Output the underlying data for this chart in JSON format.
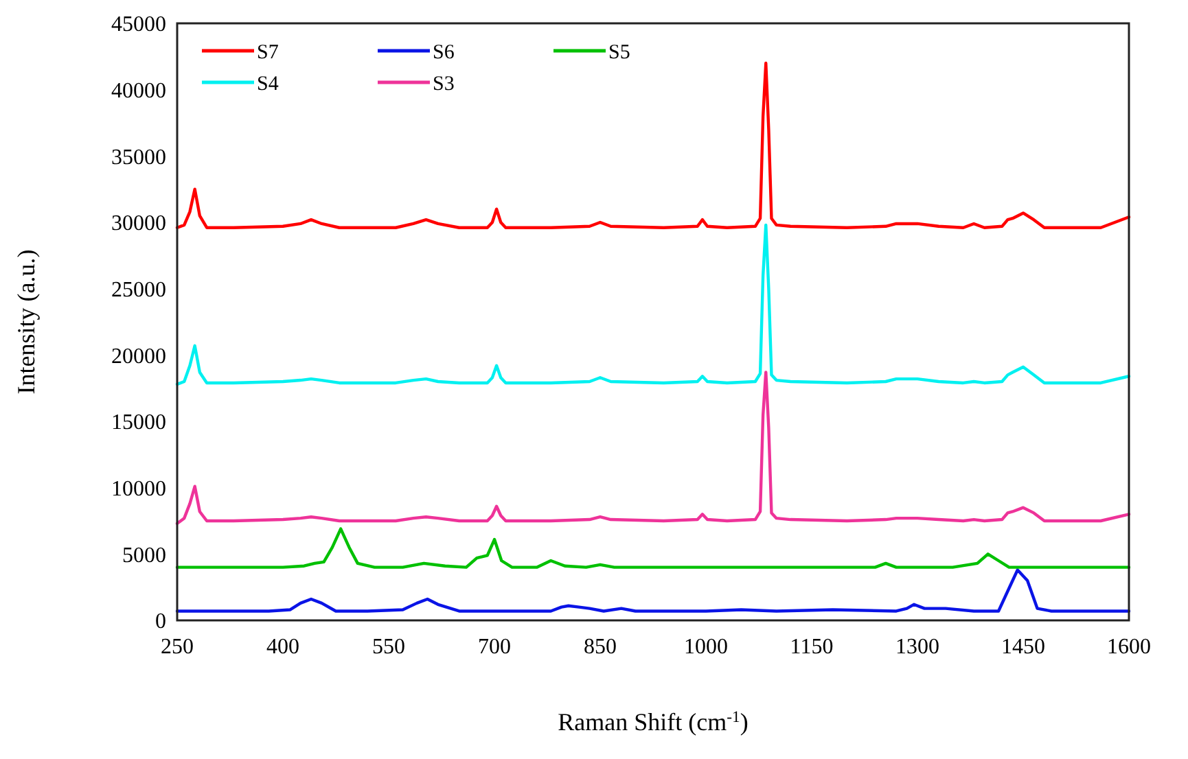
{
  "chart_data": {
    "type": "line",
    "xlabel": "Raman Shift (cm$^{-1}$)",
    "ylabel": "Intensity (a.u.)",
    "xlim": [
      250,
      1600
    ],
    "xticks": [
      250,
      400,
      550,
      700,
      850,
      1000,
      1150,
      1300,
      1450,
      1600
    ],
    "ylim": [
      0,
      45000
    ],
    "yticks": [
      0,
      5000,
      10000,
      15000,
      20000,
      25000,
      30000,
      35000,
      40000,
      45000
    ],
    "grid": false,
    "legend": "top left",
    "marker": "none",
    "line_style": "solid",
    "series": [
      {
        "name": "S7",
        "color": "#ff0000",
        "x": [
          250,
          260,
          268,
          275,
          282,
          292,
          330,
          400,
          425,
          440,
          455,
          480,
          560,
          585,
          603,
          620,
          650,
          690,
          697,
          703,
          709,
          716,
          780,
          835,
          850,
          865,
          940,
          988,
          995,
          1002,
          1030,
          1070,
          1077,
          1081,
          1085,
          1089,
          1093,
          1100,
          1120,
          1200,
          1255,
          1270,
          1300,
          1330,
          1365,
          1380,
          1395,
          1420,
          1428,
          1435,
          1450,
          1465,
          1480,
          1560,
          1600
        ],
        "values": [
          29600,
          29800,
          30800,
          32500,
          30500,
          29600,
          29600,
          29700,
          29900,
          30200,
          29900,
          29600,
          29600,
          29900,
          30200,
          29900,
          29600,
          29600,
          30000,
          31000,
          30000,
          29600,
          29600,
          29700,
          30000,
          29700,
          29600,
          29700,
          30200,
          29700,
          29600,
          29700,
          30300,
          38000,
          42000,
          37000,
          30300,
          29800,
          29700,
          29600,
          29700,
          29900,
          29900,
          29700,
          29600,
          29900,
          29600,
          29700,
          30200,
          30300,
          30700,
          30200,
          29600,
          29600,
          30400
        ]
      },
      {
        "name": "S6",
        "color": "#0a14e6",
        "x": [
          250,
          380,
          410,
          425,
          440,
          455,
          475,
          520,
          570,
          590,
          605,
          620,
          650,
          700,
          780,
          795,
          805,
          820,
          835,
          855,
          880,
          900,
          1000,
          1050,
          1100,
          1180,
          1270,
          1285,
          1295,
          1310,
          1340,
          1380,
          1415,
          1428,
          1442,
          1456,
          1470,
          1490,
          1600
        ],
        "values": [
          700,
          700,
          800,
          1300,
          1600,
          1300,
          700,
          700,
          800,
          1300,
          1600,
          1200,
          700,
          700,
          700,
          1000,
          1100,
          1000,
          900,
          700,
          900,
          700,
          700,
          800,
          700,
          800,
          700,
          900,
          1200,
          900,
          900,
          700,
          700,
          2200,
          3800,
          3000,
          900,
          700,
          700
        ]
      },
      {
        "name": "S5",
        "color": "#00c000",
        "x": [
          250,
          400,
          430,
          445,
          458,
          470,
          482,
          494,
          506,
          530,
          570,
          600,
          630,
          660,
          675,
          683,
          690,
          700,
          710,
          725,
          760,
          780,
          800,
          830,
          850,
          870,
          1000,
          1200,
          1240,
          1255,
          1270,
          1350,
          1385,
          1400,
          1415,
          1430,
          1500,
          1600
        ],
        "values": [
          4000,
          4000,
          4100,
          4300,
          4400,
          5500,
          6900,
          5500,
          4300,
          4000,
          4000,
          4300,
          4100,
          4000,
          4700,
          4800,
          4900,
          6100,
          4500,
          4000,
          4000,
          4500,
          4100,
          4000,
          4200,
          4000,
          4000,
          4000,
          4000,
          4300,
          4000,
          4000,
          4300,
          5000,
          4500,
          4000,
          4000,
          4000
        ]
      },
      {
        "name": "S4",
        "color": "#00f0f0",
        "x": [
          250,
          260,
          268,
          275,
          282,
          292,
          330,
          400,
          425,
          440,
          455,
          480,
          560,
          585,
          603,
          620,
          650,
          690,
          697,
          703,
          709,
          716,
          780,
          835,
          850,
          865,
          940,
          988,
          995,
          1002,
          1030,
          1070,
          1077,
          1081,
          1085,
          1089,
          1093,
          1100,
          1120,
          1200,
          1255,
          1270,
          1300,
          1330,
          1365,
          1380,
          1395,
          1420,
          1428,
          1435,
          1450,
          1465,
          1480,
          1560,
          1600
        ],
        "values": [
          17800,
          18000,
          19200,
          20700,
          18700,
          17900,
          17900,
          18000,
          18100,
          18200,
          18100,
          17900,
          17900,
          18100,
          18200,
          18000,
          17900,
          17900,
          18300,
          19200,
          18300,
          17900,
          17900,
          18000,
          18300,
          18000,
          17900,
          18000,
          18400,
          18000,
          17900,
          18000,
          18600,
          26000,
          29800,
          25000,
          18500,
          18100,
          18000,
          17900,
          18000,
          18200,
          18200,
          18000,
          17900,
          18000,
          17900,
          18000,
          18500,
          18700,
          19100,
          18500,
          17900,
          17900,
          18400
        ]
      },
      {
        "name": "S3",
        "color": "#ee3399",
        "x": [
          250,
          260,
          268,
          275,
          282,
          292,
          330,
          400,
          425,
          440,
          455,
          480,
          560,
          585,
          603,
          620,
          650,
          690,
          697,
          703,
          709,
          716,
          780,
          835,
          850,
          865,
          940,
          988,
          995,
          1002,
          1030,
          1070,
          1077,
          1081,
          1085,
          1089,
          1093,
          1100,
          1120,
          1200,
          1255,
          1270,
          1300,
          1330,
          1365,
          1380,
          1395,
          1420,
          1428,
          1435,
          1450,
          1465,
          1480,
          1560,
          1600
        ],
        "values": [
          7300,
          7700,
          8800,
          10100,
          8200,
          7500,
          7500,
          7600,
          7700,
          7800,
          7700,
          7500,
          7500,
          7700,
          7800,
          7700,
          7500,
          7500,
          7900,
          8600,
          7900,
          7500,
          7500,
          7600,
          7800,
          7600,
          7500,
          7600,
          8000,
          7600,
          7500,
          7600,
          8200,
          15500,
          18700,
          14500,
          8100,
          7700,
          7600,
          7500,
          7600,
          7700,
          7700,
          7600,
          7500,
          7600,
          7500,
          7600,
          8100,
          8200,
          8500,
          8100,
          7500,
          7500,
          8000
        ]
      }
    ]
  }
}
